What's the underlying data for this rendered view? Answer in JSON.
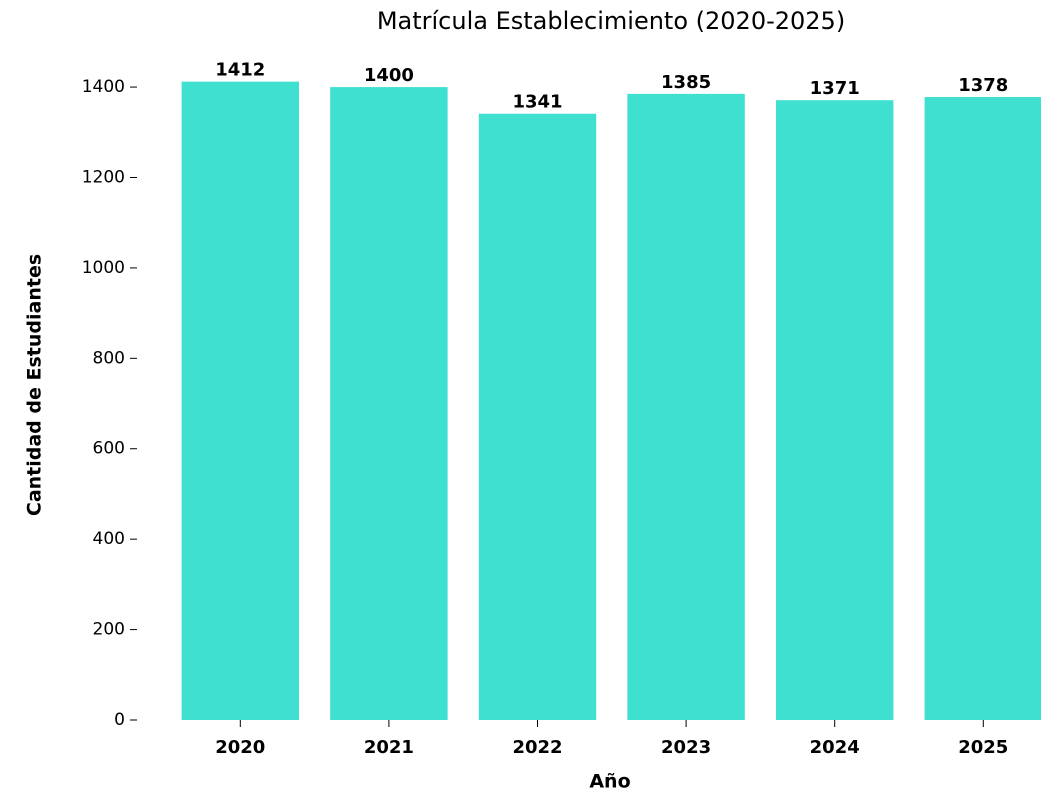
{
  "chart_data": {
    "type": "bar",
    "title": "Matrícula Establecimiento (2020-2025)",
    "x_label": "Año",
    "y_label": "Cantidad de Estudiantes",
    "categories": [
      "2020",
      "2021",
      "2022",
      "2023",
      "2024",
      "2025"
    ],
    "values": [
      1412,
      1400,
      1341,
      1385,
      1371,
      1378
    ],
    "color": "#40e0d0",
    "ylim": [
      0,
      1482
    ],
    "yticks": [
      0,
      200,
      400,
      600,
      800,
      1000,
      1200,
      1400
    ],
    "grid": false
  }
}
